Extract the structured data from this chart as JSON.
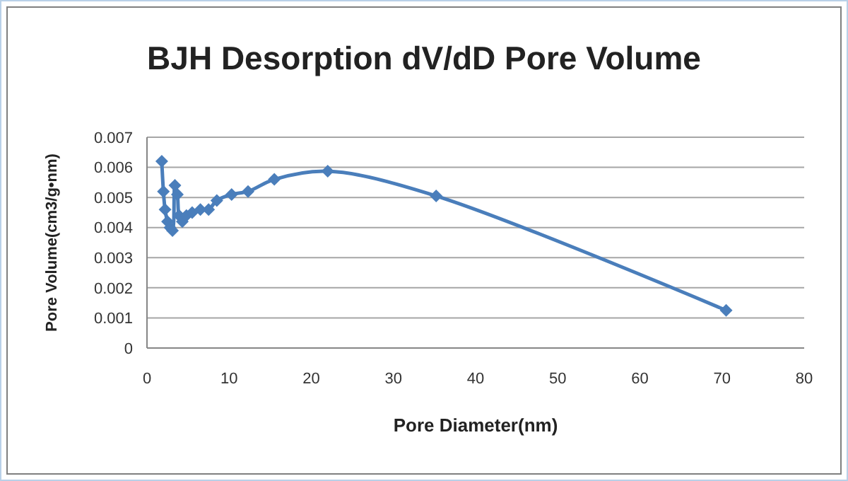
{
  "chart_data": {
    "type": "line",
    "title": "BJH Desorption dV/dD Pore Volume",
    "xlabel": "Pore Diameter(nm)",
    "ylabel": "Pore Volume(cm3/g•nm)",
    "x": [
      1.8,
      2.0,
      2.2,
      2.5,
      2.8,
      3.1,
      3.4,
      3.7,
      3.9,
      4.3,
      4.8,
      5.5,
      6.5,
      7.5,
      8.5,
      10.3,
      12.3,
      15.5,
      22,
      35.2,
      70.5
    ],
    "series": [
      {
        "color": "#4a7ebb",
        "values": [
          0.0062,
          0.0052,
          0.0046,
          0.0042,
          0.004,
          0.0039,
          0.0054,
          0.0051,
          0.0044,
          0.0042,
          0.0044,
          0.0045,
          0.0046,
          0.0046,
          0.0049,
          0.0051,
          0.0052,
          0.0056,
          0.00587,
          0.00505,
          0.00125
        ]
      }
    ],
    "xlim": [
      0,
      80
    ],
    "xticks": [
      0,
      10,
      20,
      30,
      40,
      50,
      60,
      70,
      80
    ],
    "ylim": [
      0,
      0.007
    ],
    "yticks": [
      0,
      0.001,
      0.002,
      0.003,
      0.004,
      0.005,
      0.006,
      0.007
    ],
    "grid": "y",
    "marker": "diamond",
    "line_style": "solid"
  }
}
